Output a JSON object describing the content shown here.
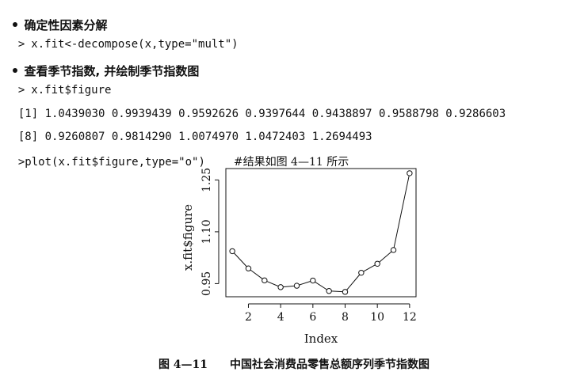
{
  "lines": [
    {
      "type": "bullet",
      "text": "确定性因素分解"
    },
    {
      "type": "code",
      "prompt": ">",
      "text": "x.fit<-decompose(x,type=\"mult\")"
    },
    {
      "type": "bullet",
      "text": "查看季节指数, 并绘制季节指数图"
    },
    {
      "type": "code",
      "prompt": ">",
      "text": "x.fit$figure"
    },
    {
      "type": "output",
      "text": "[1] 1.0439030 0.9939439 0.9592626 0.9397644 0.9438897 0.9588798 0.9286603"
    },
    {
      "type": "output",
      "text": "[8] 0.9260807 0.9814290 1.0074970 1.0472403 1.2694493"
    },
    {
      "type": "code_comment",
      "prompt": ">",
      "text": "plot(x.fit$figure,type=\"o\")",
      "comment": "#结果如图 4—11 所示"
    }
  ],
  "chart_data": {
    "type": "line",
    "markers": "open-circle",
    "x": [
      1,
      2,
      3,
      4,
      5,
      6,
      7,
      8,
      9,
      10,
      11,
      12
    ],
    "values": [
      1.043903,
      0.9939439,
      0.9592626,
      0.9397644,
      0.9438897,
      0.9588798,
      0.9286603,
      0.9260807,
      0.981429,
      1.007497,
      1.0472403,
      1.2694493
    ],
    "xlabel": "Index",
    "ylabel": "x.fit$figure",
    "xticks": [
      "2",
      "4",
      "6",
      "8",
      "10",
      "12"
    ],
    "yticks": [
      "0.95",
      "1.10",
      "1.25"
    ],
    "xlim": [
      0.6,
      12.4
    ],
    "ylim": [
      0.912,
      1.283
    ],
    "grid": false,
    "color": "#111111"
  },
  "caption": {
    "number": "图 4—11",
    "text": "中国社会消费品零售总额序列季节指数图"
  }
}
